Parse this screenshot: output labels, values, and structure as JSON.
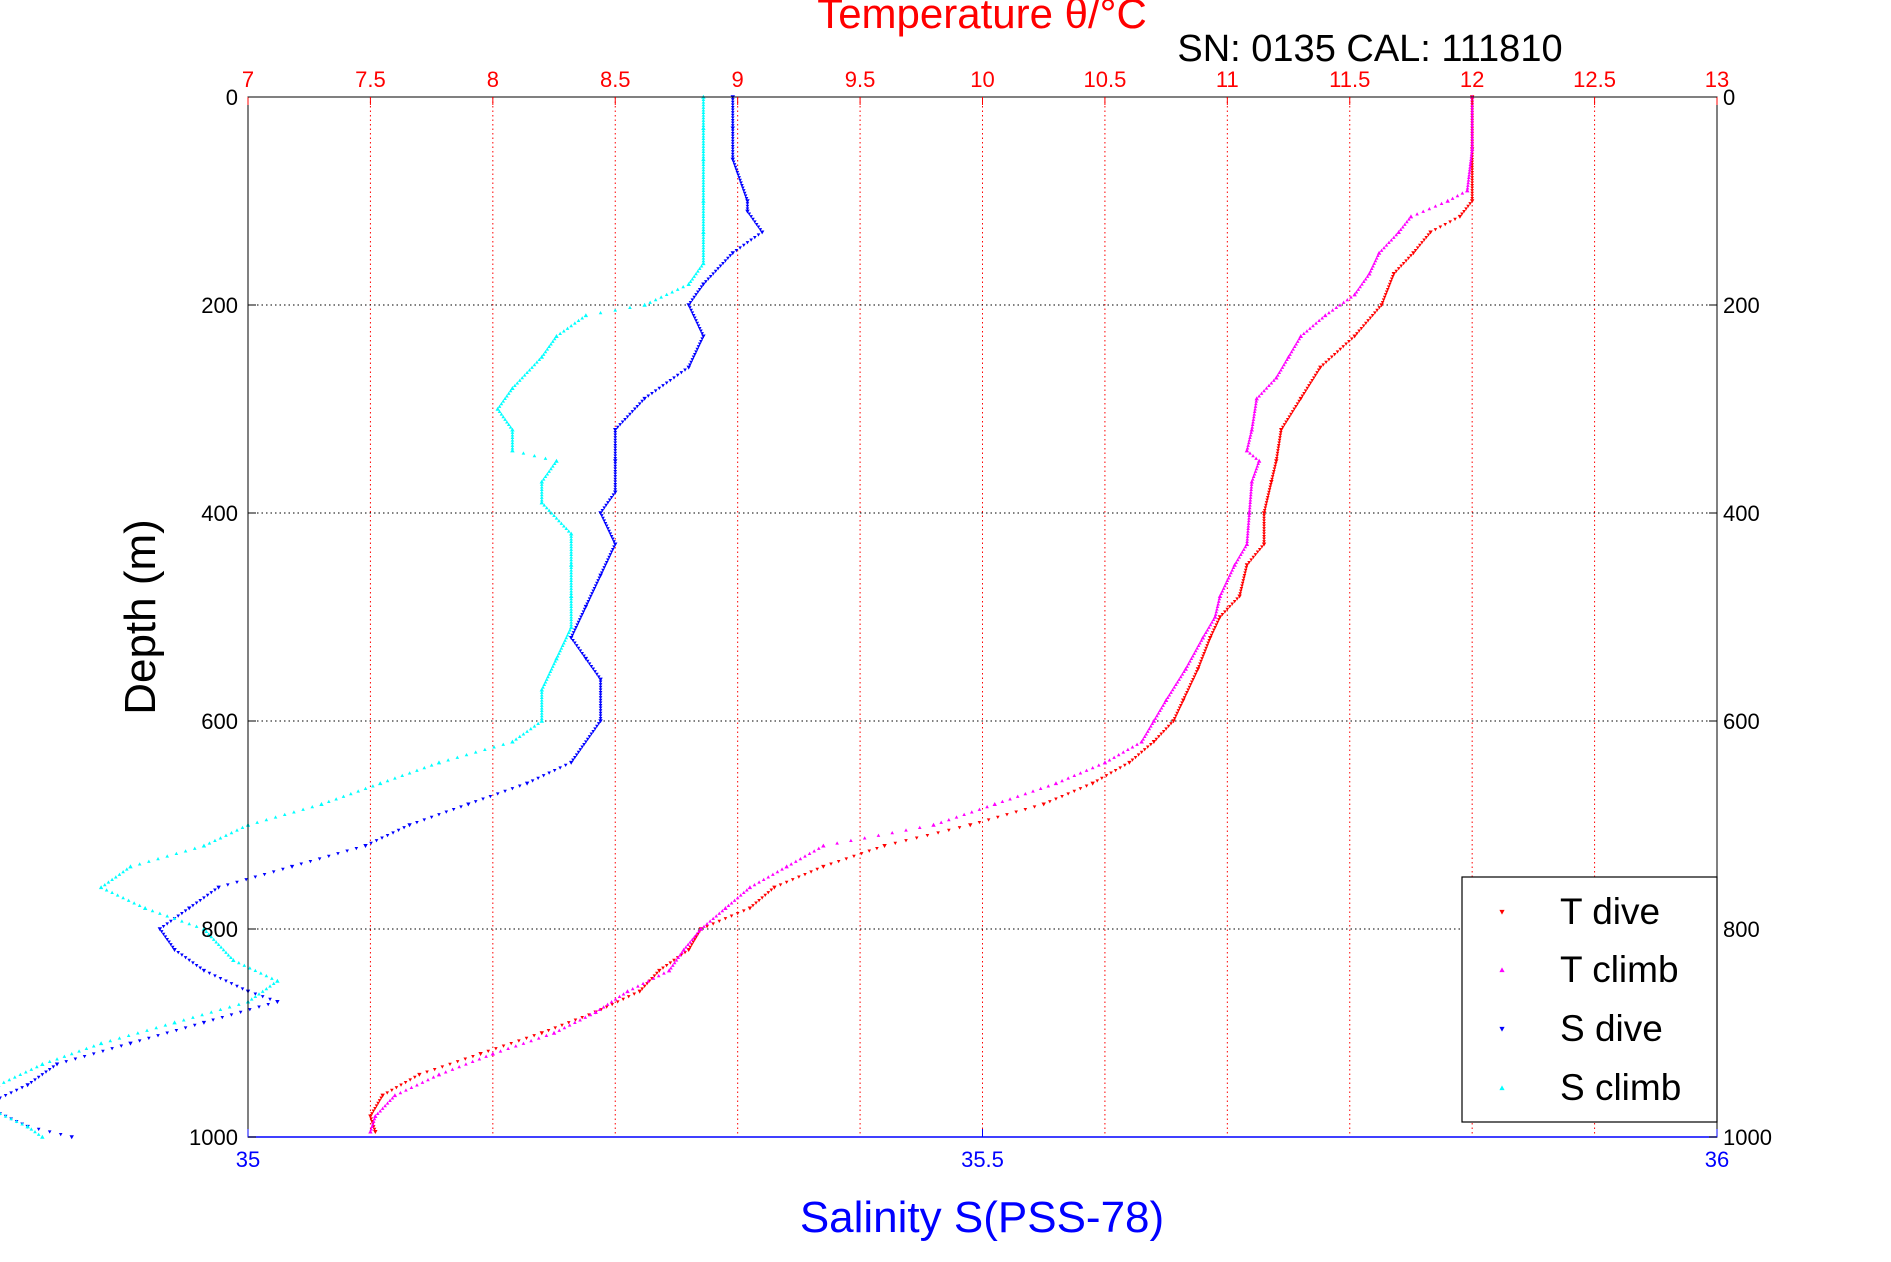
{
  "chart_data": {
    "type": "scatter",
    "title": "Temperature θ/°C",
    "subtitle": "SN: 0135  CAL: 111810",
    "xlabel": "Salinity S(PSS-78)",
    "ylabel": "Depth (m)",
    "x_top": {
      "label": "Temperature θ/°C",
      "lim": [
        7,
        13
      ],
      "ticks": [
        "7",
        "7.5",
        "8",
        "8.5",
        "9",
        "9.5",
        "10",
        "10.5",
        "11",
        "11.5",
        "12",
        "12.5",
        "13"
      ],
      "color": "#ff0000"
    },
    "x_bottom": {
      "label": "Salinity S(PSS-78)",
      "lim": [
        35,
        36
      ],
      "ticks": [
        "35",
        "35.5",
        "36"
      ],
      "color": "#0000ff"
    },
    "y": {
      "lim": [
        0,
        1000
      ],
      "reversed": true,
      "ticks": [
        "0",
        "200",
        "400",
        "600",
        "800",
        "1000"
      ]
    },
    "grid": true,
    "legend_position": "bottom-right",
    "series": [
      {
        "name": "T dive",
        "axis": "temperature",
        "color": "#ff0000",
        "marker": "triangle-down",
        "depth": [
          0,
          50,
          100,
          115,
          130,
          150,
          170,
          200,
          230,
          260,
          290,
          320,
          350,
          370,
          400,
          430,
          450,
          480,
          500,
          520,
          550,
          580,
          600,
          620,
          640,
          660,
          680,
          700,
          720,
          740,
          760,
          780,
          800,
          820,
          840,
          860,
          880,
          900,
          920,
          940,
          960,
          980,
          995
        ],
        "values": [
          12.0,
          12.0,
          12.0,
          11.95,
          11.83,
          11.76,
          11.68,
          11.63,
          11.52,
          11.38,
          11.3,
          11.22,
          11.2,
          11.18,
          11.15,
          11.15,
          11.08,
          11.05,
          10.97,
          10.93,
          10.88,
          10.82,
          10.78,
          10.7,
          10.6,
          10.45,
          10.25,
          9.95,
          9.6,
          9.35,
          9.15,
          9.05,
          8.85,
          8.8,
          8.68,
          8.6,
          8.42,
          8.2,
          7.95,
          7.7,
          7.55,
          7.5,
          7.52
        ]
      },
      {
        "name": "T climb",
        "axis": "temperature",
        "color": "#ff00ff",
        "marker": "triangle-up",
        "depth": [
          0,
          50,
          90,
          100,
          115,
          130,
          150,
          170,
          190,
          210,
          230,
          250,
          270,
          290,
          320,
          340,
          350,
          370,
          400,
          430,
          450,
          480,
          500,
          520,
          550,
          580,
          600,
          620,
          640,
          660,
          680,
          700,
          720,
          740,
          760,
          780,
          800,
          820,
          840,
          860,
          880,
          900,
          920,
          940,
          960,
          980,
          995
        ],
        "values": [
          12.0,
          12.0,
          11.98,
          11.9,
          11.75,
          11.7,
          11.62,
          11.58,
          11.52,
          11.4,
          11.3,
          11.25,
          11.2,
          11.12,
          11.1,
          11.08,
          11.13,
          11.1,
          11.09,
          11.08,
          11.03,
          10.97,
          10.95,
          10.9,
          10.83,
          10.75,
          10.7,
          10.65,
          10.5,
          10.3,
          10.05,
          9.8,
          9.35,
          9.2,
          9.05,
          8.95,
          8.85,
          8.78,
          8.72,
          8.55,
          8.42,
          8.25,
          8.0,
          7.78,
          7.6,
          7.52,
          7.5
        ]
      },
      {
        "name": "S dive",
        "axis": "salinity",
        "color": "#0000ff",
        "marker": "triangle-down",
        "depth": [
          0,
          30,
          60,
          100,
          110,
          130,
          150,
          180,
          200,
          230,
          260,
          290,
          320,
          350,
          380,
          400,
          430,
          460,
          490,
          520,
          540,
          560,
          600,
          640,
          660,
          680,
          700,
          720,
          740,
          760,
          780,
          800,
          820,
          840,
          860,
          870,
          890,
          910,
          930,
          950,
          970,
          990,
          1000
        ],
        "values": [
          35.33,
          35.33,
          35.33,
          35.34,
          35.34,
          35.35,
          35.33,
          35.31,
          35.3,
          35.31,
          35.3,
          35.27,
          35.25,
          35.25,
          35.25,
          35.24,
          35.25,
          35.24,
          35.23,
          35.22,
          35.23,
          35.24,
          35.24,
          35.22,
          35.19,
          35.15,
          35.11,
          35.08,
          35.03,
          34.98,
          34.96,
          34.94,
          34.95,
          34.97,
          35.0,
          35.02,
          34.97,
          34.92,
          34.87,
          34.85,
          34.82,
          34.85,
          34.88
        ]
      },
      {
        "name": "S climb",
        "axis": "salinity",
        "color": "#00ffff",
        "marker": "triangle-up",
        "depth": [
          0,
          30,
          60,
          100,
          130,
          160,
          180,
          200,
          210,
          230,
          250,
          280,
          300,
          320,
          340,
          350,
          370,
          390,
          420,
          450,
          480,
          510,
          540,
          570,
          600,
          620,
          640,
          660,
          680,
          700,
          720,
          740,
          760,
          780,
          800,
          830,
          850,
          870,
          890,
          910,
          930,
          950,
          970,
          990,
          1000
        ],
        "values": [
          35.31,
          35.31,
          35.31,
          35.31,
          35.31,
          35.31,
          35.3,
          35.27,
          35.23,
          35.21,
          35.2,
          35.18,
          35.17,
          35.18,
          35.18,
          35.21,
          35.2,
          35.2,
          35.22,
          35.22,
          35.22,
          35.22,
          35.21,
          35.2,
          35.2,
          35.18,
          35.13,
          35.09,
          35.05,
          35.0,
          34.97,
          34.92,
          34.9,
          34.93,
          34.97,
          34.99,
          35.02,
          35.0,
          34.95,
          34.9,
          34.86,
          34.83,
          34.82,
          34.85,
          34.86
        ]
      }
    ]
  }
}
